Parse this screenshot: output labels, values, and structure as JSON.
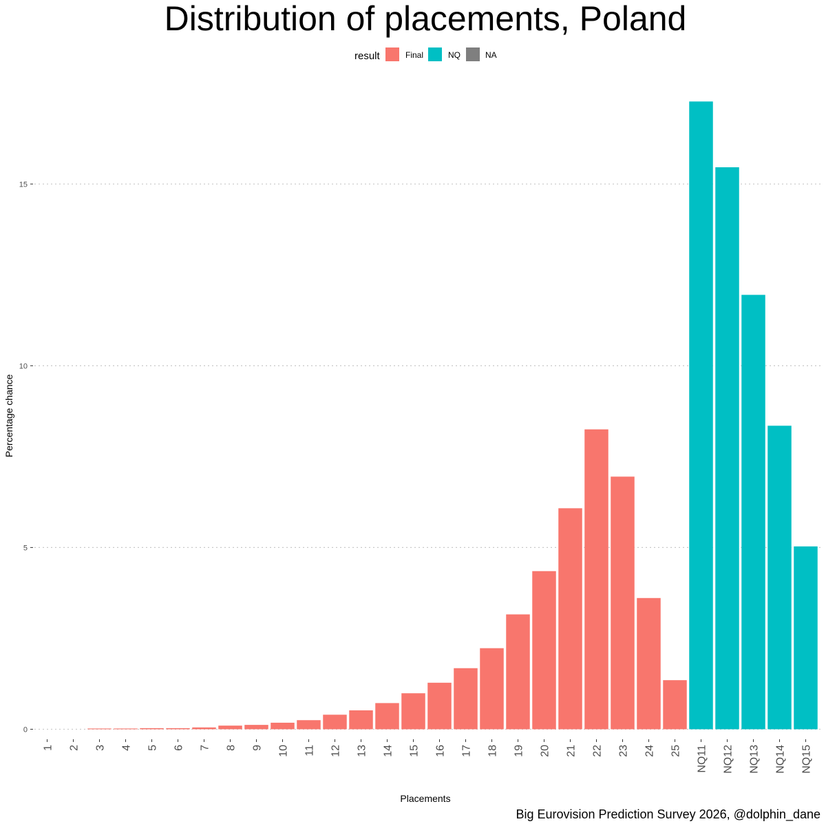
{
  "colors": {
    "Final": "#F8766D",
    "NQ": "#00BFC4",
    "NA": "#7F7F7F"
  },
  "chart_data": {
    "type": "bar",
    "title": "Distribution of placements, Poland",
    "xlabel": "Placements",
    "ylabel": "Percentage chance",
    "caption": "Big Eurovision Prediction Survey 2026, @dolphin_dane",
    "ylim": [
      -0.2,
      17.6
    ],
    "yticks": [
      0,
      5,
      10,
      15
    ],
    "ytick_labels": [
      "0",
      "5",
      "10",
      "15"
    ],
    "grid": true,
    "legend": {
      "title": "result",
      "position": "top",
      "entries": [
        {
          "label": "Final",
          "key": "Final"
        },
        {
          "label": "NQ",
          "key": "NQ"
        },
        {
          "label": "NA",
          "key": "NA"
        }
      ]
    },
    "categories": [
      "1",
      "2",
      "3",
      "4",
      "5",
      "6",
      "7",
      "8",
      "9",
      "10",
      "11",
      "12",
      "13",
      "14",
      "15",
      "16",
      "17",
      "18",
      "19",
      "20",
      "21",
      "22",
      "23",
      "24",
      "25",
      "NQ11",
      "NQ12",
      "NQ13",
      "NQ14",
      "NQ15"
    ],
    "values": [
      0,
      0,
      0.02,
      0.02,
      0.03,
      0.03,
      0.05,
      0.1,
      0.12,
      0.18,
      0.25,
      0.4,
      0.52,
      0.72,
      0.99,
      1.28,
      1.68,
      2.23,
      3.16,
      4.35,
      6.08,
      8.25,
      6.95,
      3.61,
      1.35,
      17.27,
      15.46,
      11.95,
      8.35,
      5.03
    ],
    "groups": [
      "Final",
      "Final",
      "Final",
      "Final",
      "Final",
      "Final",
      "Final",
      "Final",
      "Final",
      "Final",
      "Final",
      "Final",
      "Final",
      "Final",
      "Final",
      "Final",
      "Final",
      "Final",
      "Final",
      "Final",
      "Final",
      "Final",
      "Final",
      "Final",
      "Final",
      "NQ",
      "NQ",
      "NQ",
      "NQ",
      "NQ"
    ]
  }
}
